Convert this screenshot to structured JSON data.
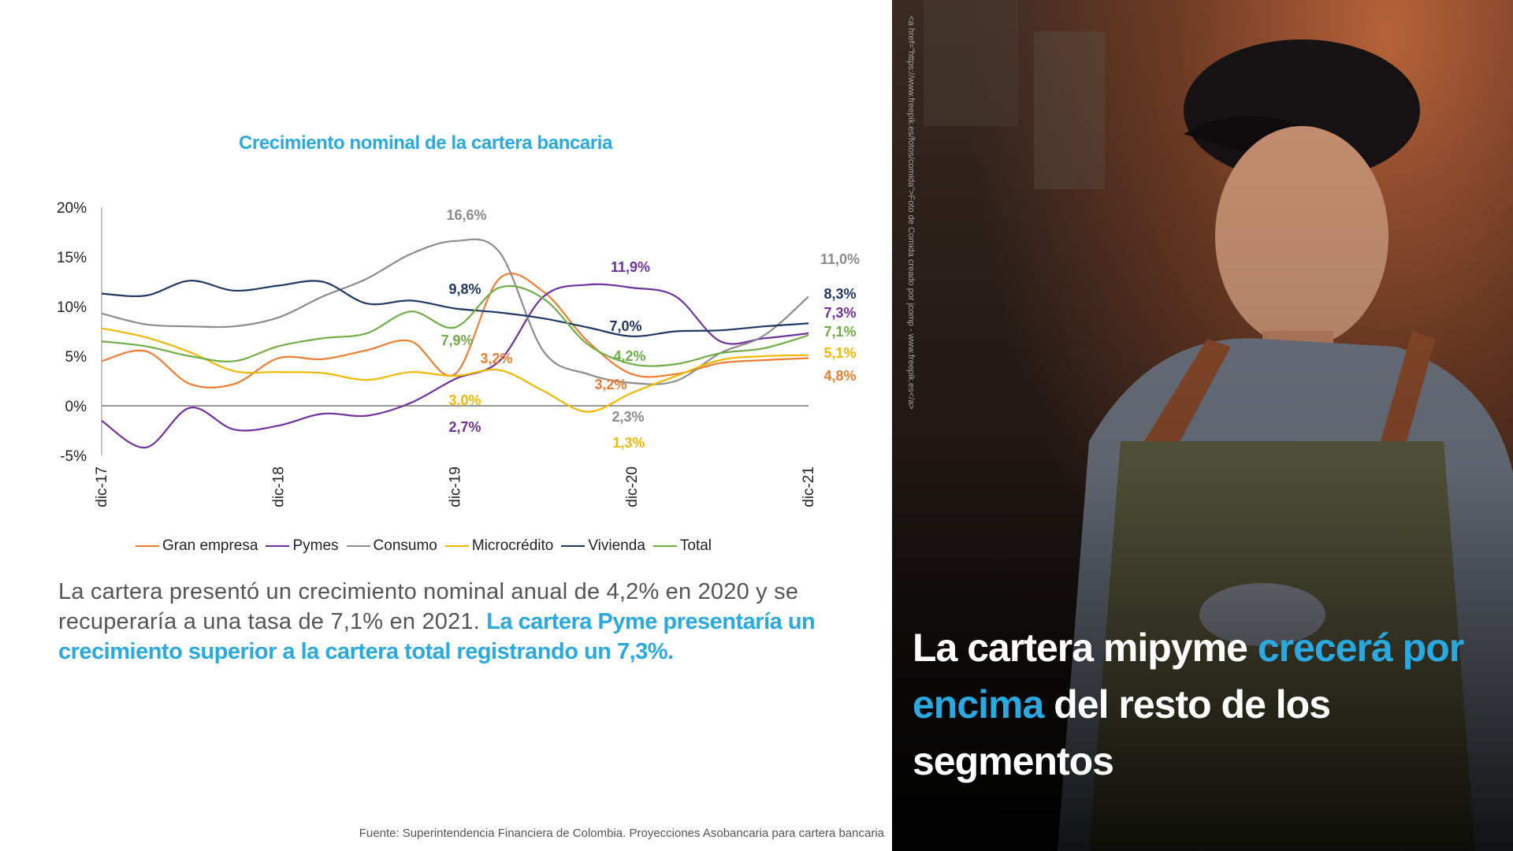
{
  "chart_data": {
    "type": "line",
    "title": "Crecimiento nominal de la cartera bancaria",
    "x_tick_labels": [
      "dic-17",
      "dic-18",
      "dic-19",
      "dic-20",
      "dic-21"
    ],
    "y_tick_labels": [
      "20%",
      "15%",
      "10%",
      "5%",
      "0%",
      "-5%"
    ],
    "ylim": [
      -5,
      20
    ],
    "legend_position": "bottom",
    "x": [
      "dic-17",
      "mar-18",
      "jun-18",
      "sep-18",
      "dic-18",
      "mar-19",
      "jun-19",
      "sep-19",
      "dic-19",
      "mar-20",
      "jun-20",
      "sep-20",
      "dic-20",
      "mar-21",
      "jun-21",
      "sep-21",
      "dic-21"
    ],
    "series": [
      {
        "name": "Gran empresa",
        "color": "#ed7d31",
        "values": [
          4.5,
          5.5,
          2.2,
          2.2,
          4.8,
          4.7,
          5.6,
          6.5,
          3.2,
          12.8,
          11.5,
          6.5,
          3.2,
          3.2,
          4.3,
          4.6,
          4.8
        ]
      },
      {
        "name": "Pymes",
        "color": "#7030a0",
        "values": [
          -1.5,
          -4.2,
          -0.2,
          -2.4,
          -2.0,
          -0.8,
          -1.0,
          0.3,
          2.7,
          4.5,
          11.0,
          12.2,
          11.9,
          11.0,
          6.5,
          6.8,
          7.3
        ]
      },
      {
        "name": "Consumo",
        "color": "#8c8c8c",
        "values": [
          9.3,
          8.2,
          8.0,
          8.0,
          8.9,
          11.0,
          12.8,
          15.3,
          16.6,
          15.5,
          5.5,
          3.2,
          2.3,
          2.5,
          5.3,
          7.1,
          11.0
        ]
      },
      {
        "name": "Microcrédito",
        "color": "#f2b800",
        "values": [
          7.8,
          6.9,
          5.4,
          3.5,
          3.4,
          3.3,
          2.6,
          3.4,
          3.0,
          3.6,
          1.5,
          -0.6,
          1.3,
          3.0,
          4.6,
          5.0,
          5.1
        ]
      },
      {
        "name": "Vivienda",
        "color": "#1f3864",
        "values": [
          11.3,
          11.1,
          12.6,
          11.6,
          12.1,
          12.5,
          10.3,
          10.6,
          9.8,
          9.4,
          8.8,
          7.9,
          7.0,
          7.5,
          7.6,
          8.0,
          8.3
        ]
      },
      {
        "name": "Total",
        "color": "#70ad47",
        "values": [
          6.5,
          6.0,
          5.0,
          4.5,
          6.0,
          6.8,
          7.3,
          9.5,
          7.9,
          11.9,
          10.8,
          6.2,
          4.2,
          4.2,
          5.3,
          5.8,
          7.1
        ]
      }
    ],
    "annotations": [
      {
        "text": "16,6%",
        "color": "#8c8c8c"
      },
      {
        "text": "9,8%",
        "color": "#1f3864"
      },
      {
        "text": "7,9%",
        "color": "#70ad47"
      },
      {
        "text": "3,2%",
        "color": "#ed7d31"
      },
      {
        "text": "3,0%",
        "color": "#f2b800"
      },
      {
        "text": "2,7%",
        "color": "#7030a0"
      },
      {
        "text": "11,9%",
        "color": "#7030a0"
      },
      {
        "text": "7,0%",
        "color": "#1f3864"
      },
      {
        "text": "4,2%",
        "color": "#70ad47"
      },
      {
        "text": "3,2%",
        "color": "#ed7d31"
      },
      {
        "text": "2,3%",
        "color": "#8c8c8c"
      },
      {
        "text": "1,3%",
        "color": "#f2b800"
      },
      {
        "text": "11,0%",
        "color": "#8c8c8c"
      },
      {
        "text": "8,3%",
        "color": "#1f3864"
      },
      {
        "text": "7,3%",
        "color": "#7030a0"
      },
      {
        "text": "7,1%",
        "color": "#70ad47"
      },
      {
        "text": "5,1%",
        "color": "#f2b800"
      },
      {
        "text": "4,8%",
        "color": "#ed7d31"
      }
    ]
  },
  "body_text": {
    "plain": "La cartera presentó un crecimiento nominal anual de 4,2% en 2020 y se recuperaría a una tasa de 7,1% en 2021.",
    "highlight": "La cartera Pyme presentaría un crecimiento superior a la cartera total registrando un 7,3%."
  },
  "source": "Fuente: Superintendencia Financiera de Colombia. Proyecciones Asobancaria para cartera bancaria",
  "photo_credit": "<a href=\"https://www.freepik.es/fotos/comida\">Foto de Comida creado por jcomp - www.freepik.es</a>",
  "headline": {
    "part1": "La cartera mipyme",
    "part2": "crecerá por encima",
    "part3": "del resto de los segmentos"
  },
  "colors": {
    "accent": "#29a9e1",
    "text": "#555555"
  }
}
